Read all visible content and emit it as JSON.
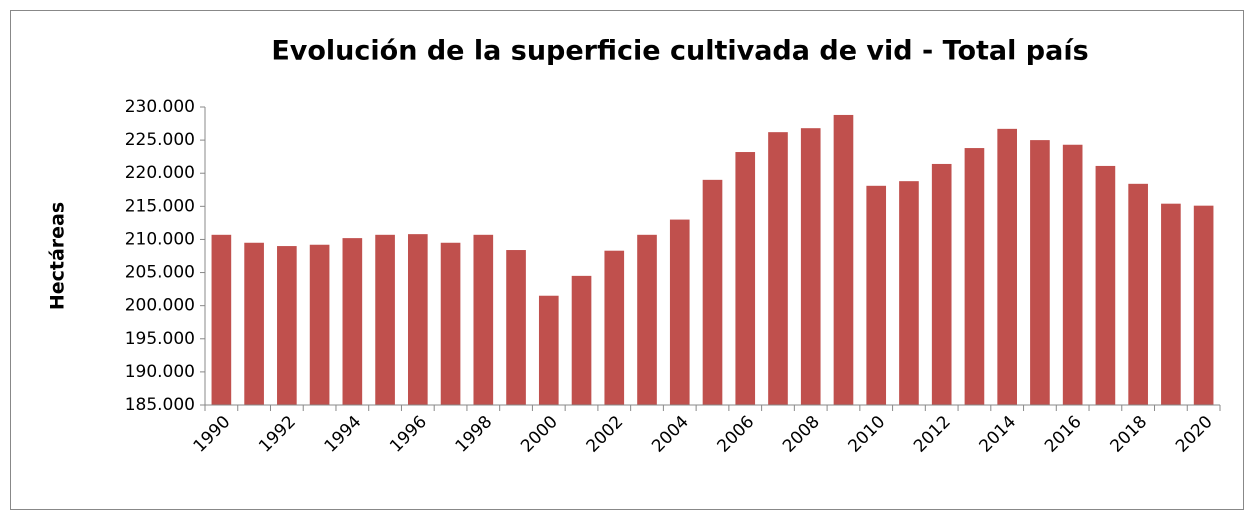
{
  "chart_data": {
    "type": "bar",
    "title": "Evolución de la superficie cultivada de vid - Total país",
    "y_label": "Hectáreas",
    "categories": [
      "1990",
      null,
      "1992",
      null,
      "1994",
      null,
      "1996",
      null,
      "1998",
      null,
      "2000",
      null,
      "2002",
      null,
      "2004",
      null,
      "2006",
      null,
      "2008",
      null,
      "2010",
      null,
      "2012",
      null,
      "2014",
      null,
      "2016",
      null,
      "2018",
      null,
      "2020"
    ],
    "values": [
      210700,
      209500,
      209000,
      209200,
      210200,
      210700,
      210800,
      209500,
      210700,
      208400,
      201500,
      204500,
      208300,
      210700,
      213000,
      219000,
      223200,
      226200,
      226800,
      228800,
      218100,
      218800,
      221400,
      223800,
      226700,
      225000,
      224300,
      221100,
      218400,
      215400,
      215100
    ],
    "color": "#c0504d",
    "ylim": [
      185000,
      230000
    ],
    "yticks": [
      {
        "value": 185000,
        "label": "185.000"
      },
      {
        "value": 190000,
        "label": "190.000"
      },
      {
        "value": 195000,
        "label": "195.000"
      },
      {
        "value": 200000,
        "label": "200.000"
      },
      {
        "value": 205000,
        "label": "205.000"
      },
      {
        "value": 210000,
        "label": "210.000"
      },
      {
        "value": 215000,
        "label": "215.000"
      },
      {
        "value": 220000,
        "label": "220.000"
      },
      {
        "value": 225000,
        "label": "225.000"
      },
      {
        "value": 230000,
        "label": "230.000"
      }
    ],
    "grid": false
  }
}
